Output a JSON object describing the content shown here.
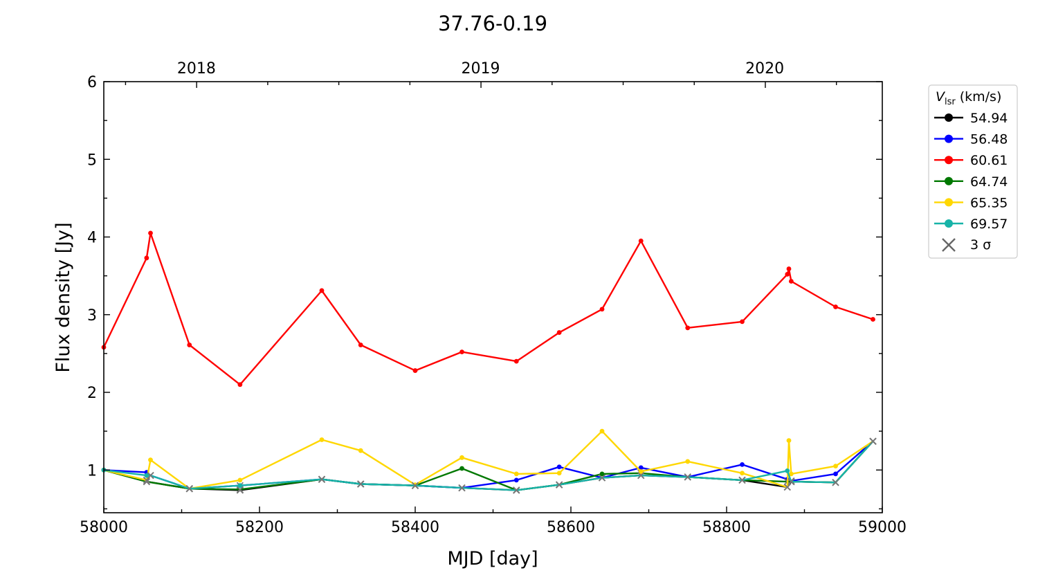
{
  "chart_data": {
    "type": "line",
    "title": "37.76-0.19",
    "xlabel": "MJD [day]",
    "ylabel": "Flux density [Jy]",
    "xlim": [
      58000,
      59000
    ],
    "ylim": [
      0.45,
      6.0
    ],
    "x_ticks": [
      "58000",
      "58200",
      "58400",
      "58600",
      "58800",
      "59000"
    ],
    "y_ticks": [
      "1",
      "2",
      "3",
      "4",
      "5",
      "6"
    ],
    "top_axis_ticks": [
      {
        "mjd": 58119,
        "label": "2018"
      },
      {
        "mjd": 58484,
        "label": "2019"
      },
      {
        "mjd": 58849,
        "label": "2020"
      }
    ],
    "grid": false,
    "legend_placement": "outside-top-right",
    "legend": {
      "title_symbol": "V",
      "title_subscript": "lsr",
      "title_unit": "(km/s)",
      "limit_label": "3 σ"
    },
    "series": [
      {
        "name": "54.94",
        "color": "#000000",
        "x": [
          58000,
          58055,
          58110,
          58175,
          58280,
          58330,
          58400,
          58460,
          58530,
          58585,
          58640,
          58690,
          58750,
          58820,
          58878,
          58883,
          58940,
          58988
        ],
        "y": [
          1.0,
          0.85,
          0.76,
          0.74,
          0.88,
          0.82,
          0.8,
          0.77,
          0.74,
          0.81,
          0.9,
          0.93,
          0.91,
          0.87,
          0.78,
          0.85,
          0.84,
          1.37
        ],
        "limit": [
          false,
          true,
          true,
          true,
          true,
          true,
          true,
          true,
          true,
          true,
          true,
          true,
          true,
          true,
          true,
          true,
          true,
          true
        ]
      },
      {
        "name": "56.48",
        "color": "#0000ff",
        "x": [
          58000,
          58055,
          58060,
          58110,
          58175,
          58280,
          58330,
          58400,
          58460,
          58530,
          58585,
          58640,
          58690,
          58750,
          58820,
          58878,
          58883,
          58940,
          58988
        ],
        "y": [
          1.0,
          0.97,
          0.93,
          0.76,
          0.8,
          0.88,
          0.82,
          0.8,
          0.77,
          0.87,
          1.04,
          0.9,
          1.03,
          0.91,
          1.07,
          0.88,
          0.86,
          0.95,
          1.37
        ],
        "limit": [
          false,
          false,
          true,
          true,
          true,
          true,
          true,
          true,
          true,
          false,
          false,
          true,
          false,
          true,
          false,
          false,
          true,
          false,
          true
        ]
      },
      {
        "name": "60.61",
        "color": "#ff0000",
        "x": [
          58000,
          58055,
          58060,
          58110,
          58175,
          58280,
          58330,
          58400,
          58460,
          58530,
          58585,
          58640,
          58690,
          58750,
          58820,
          58878,
          58880,
          58883,
          58940,
          58988
        ],
        "y": [
          2.58,
          3.73,
          4.05,
          2.61,
          2.1,
          3.31,
          2.61,
          2.28,
          2.52,
          2.4,
          2.77,
          3.07,
          3.95,
          2.83,
          2.91,
          3.52,
          3.59,
          3.43,
          3.1,
          2.94
        ],
        "limit": [
          false,
          false,
          false,
          false,
          false,
          false,
          false,
          false,
          false,
          false,
          false,
          false,
          false,
          false,
          false,
          false,
          false,
          false,
          false,
          false
        ]
      },
      {
        "name": "64.74",
        "color": "#007800",
        "x": [
          58000,
          58055,
          58110,
          58175,
          58280,
          58330,
          58400,
          58460,
          58530,
          58585,
          58640,
          58690,
          58750,
          58820,
          58878,
          58883,
          58940,
          58988
        ],
        "y": [
          1.0,
          0.85,
          0.76,
          0.75,
          0.88,
          0.82,
          0.8,
          1.02,
          0.74,
          0.81,
          0.95,
          0.96,
          0.91,
          0.87,
          0.85,
          0.85,
          0.84,
          1.37
        ],
        "limit": [
          false,
          true,
          true,
          true,
          true,
          true,
          true,
          false,
          true,
          true,
          false,
          true,
          true,
          true,
          true,
          true,
          true,
          true
        ]
      },
      {
        "name": "65.35",
        "color": "#ffd700",
        "x": [
          58000,
          58055,
          58060,
          58110,
          58175,
          58280,
          58330,
          58400,
          58460,
          58530,
          58585,
          58640,
          58690,
          58750,
          58820,
          58878,
          58880,
          58883,
          58940,
          58988
        ],
        "y": [
          1.0,
          0.87,
          1.13,
          0.76,
          0.87,
          1.39,
          1.25,
          0.81,
          1.16,
          0.95,
          0.96,
          1.5,
          0.98,
          1.11,
          0.96,
          0.78,
          1.38,
          0.95,
          1.05,
          1.37
        ],
        "limit": [
          false,
          true,
          false,
          true,
          false,
          false,
          false,
          false,
          false,
          false,
          false,
          false,
          false,
          false,
          false,
          true,
          false,
          false,
          false,
          true
        ]
      },
      {
        "name": "69.57",
        "color": "#17b3a8",
        "x": [
          58000,
          58055,
          58060,
          58110,
          58175,
          58280,
          58330,
          58400,
          58460,
          58530,
          58585,
          58640,
          58690,
          58750,
          58820,
          58878,
          58883,
          58940,
          58988
        ],
        "y": [
          1.0,
          0.93,
          0.93,
          0.76,
          0.8,
          0.88,
          0.82,
          0.8,
          0.77,
          0.74,
          0.81,
          0.9,
          0.93,
          0.91,
          0.87,
          0.99,
          0.85,
          0.84,
          1.37
        ],
        "limit": [
          false,
          false,
          true,
          true,
          false,
          true,
          true,
          true,
          true,
          true,
          true,
          true,
          true,
          true,
          true,
          false,
          true,
          true,
          true
        ]
      }
    ]
  }
}
